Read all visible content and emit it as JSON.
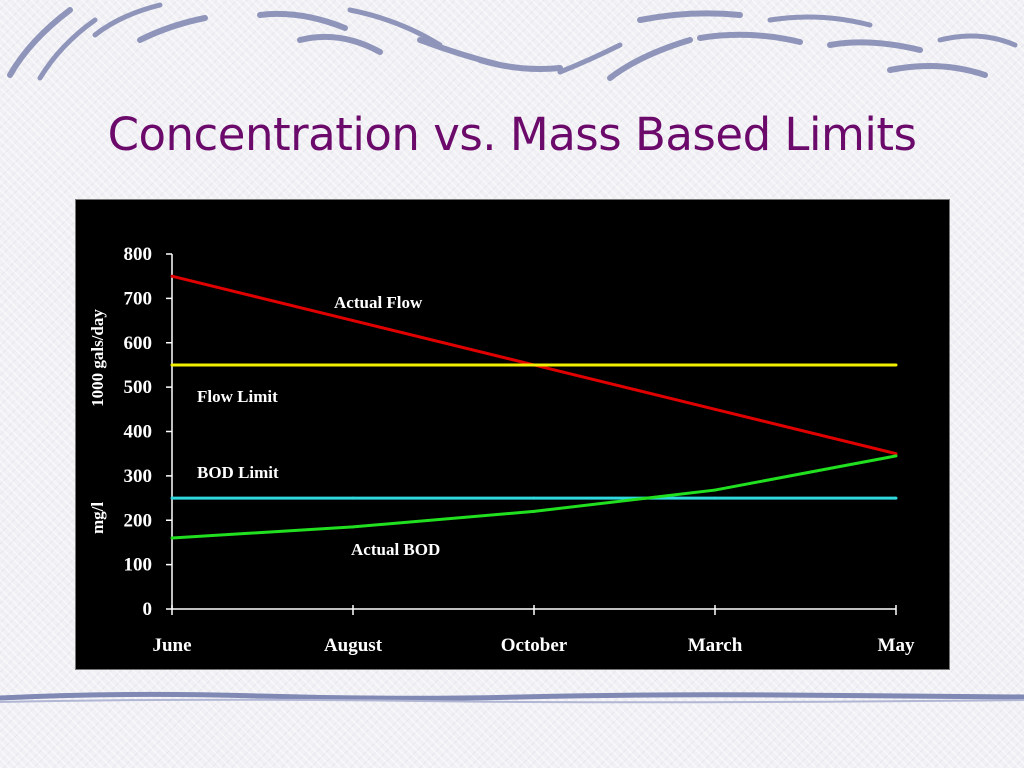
{
  "slide": {
    "title": "Concentration vs. Mass Based Limits"
  },
  "colors": {
    "title": "#6b0a6b",
    "plot_background": "#000000",
    "axis": "#ffffff"
  },
  "chart_data": {
    "type": "line",
    "title": "",
    "categories": [
      "June",
      "August",
      "October",
      "March",
      "May"
    ],
    "ylim": [
      0,
      800
    ],
    "yticks": [
      0,
      100,
      200,
      300,
      400,
      500,
      600,
      700,
      800
    ],
    "ylabel_upper": "1000 gals/day",
    "ylabel_lower": "mg/l",
    "grid": false,
    "legend": "none (inline labels)",
    "series": [
      {
        "name": "Actual Flow",
        "color": "#e00000",
        "values": [
          750,
          650,
          550,
          450,
          350
        ]
      },
      {
        "name": "Flow Limit",
        "color": "#f0f000",
        "values": [
          550,
          550,
          550,
          550,
          550
        ]
      },
      {
        "name": "BOD Limit",
        "color": "#30d8e0",
        "values": [
          250,
          250,
          250,
          250,
          250
        ]
      },
      {
        "name": "Actual BOD",
        "color": "#20e020",
        "values": [
          160,
          185,
          220,
          268,
          345
        ]
      }
    ]
  }
}
